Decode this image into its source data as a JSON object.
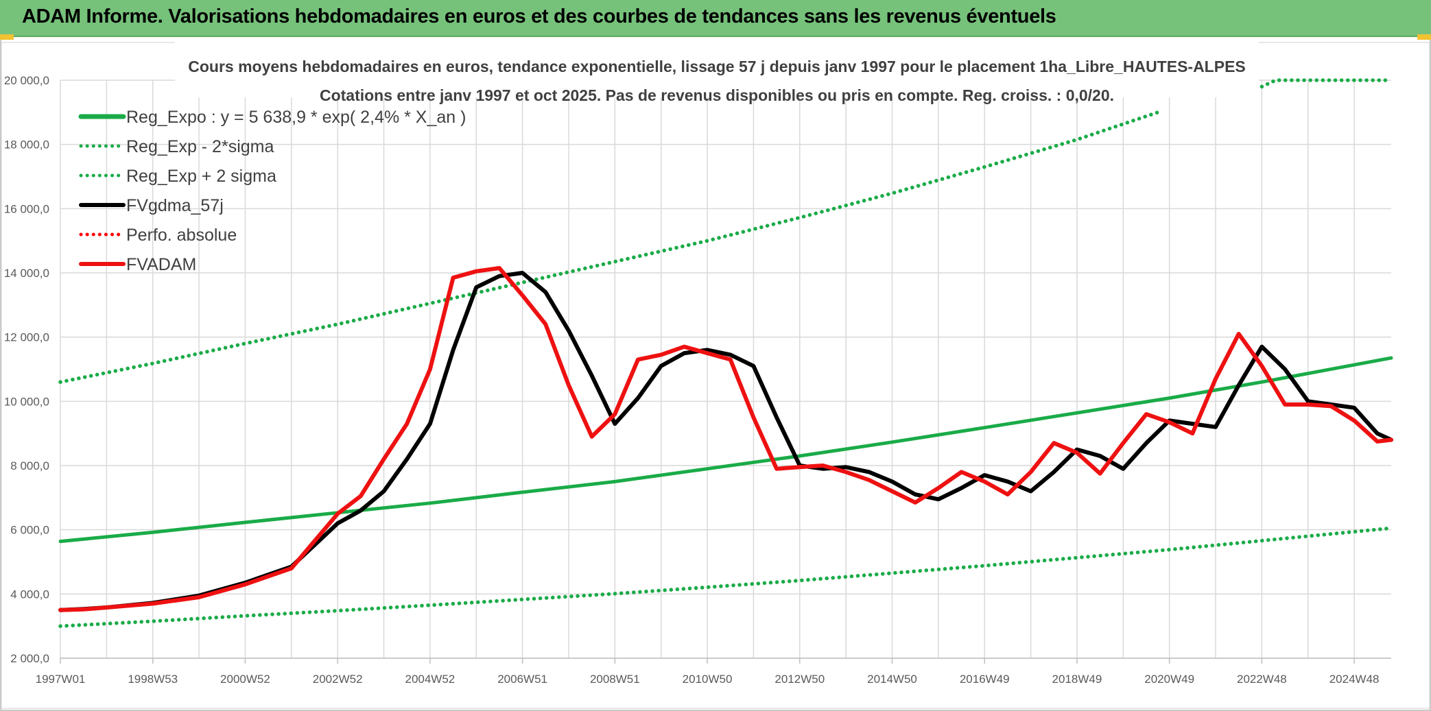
{
  "header": {
    "title": "ADAM Informe. Valorisations hebdomadaires en euros et des courbes de tendances sans les revenus éventuels"
  },
  "colors": {
    "header_bg": "#76c27b",
    "reg_expo": "#1aab48",
    "fvgdma": "#000000",
    "perfo": "#ff0000",
    "fvadam": "#ee1111",
    "grid": "#d9d9d9",
    "corner": "#f1c232"
  },
  "chart_data": {
    "type": "line",
    "title": "Cours moyens hebdomadaires en euros, tendance exponentielle, lissage 57 j depuis janv 1997 pour le placement 1ha_Libre_HAUTES-ALPES",
    "subtitle": "Cotations entre janv 1997 et oct 2025. Pas de revenus disponibles ou pris en compte. Reg. croiss. : 0,0/20.",
    "xlabel": "",
    "ylabel": "",
    "ylim": [
      2000,
      20000
    ],
    "xlim": [
      1997.0,
      2025.8
    ],
    "grid": true,
    "legend_position": "top-left",
    "y_ticks": [
      {
        "value": 2000,
        "label": "2 000,0"
      },
      {
        "value": 4000,
        "label": "4 000,0"
      },
      {
        "value": 6000,
        "label": "6 000,0"
      },
      {
        "value": 8000,
        "label": "8 000,0"
      },
      {
        "value": 10000,
        "label": "10 000,0"
      },
      {
        "value": 12000,
        "label": "12 000,0"
      },
      {
        "value": 14000,
        "label": "14 000,0"
      },
      {
        "value": 16000,
        "label": "16 000,0"
      },
      {
        "value": 18000,
        "label": "18 000,0"
      },
      {
        "value": 20000,
        "label": "20 000,0"
      }
    ],
    "x_ticks": [
      {
        "value": 1997.0,
        "label": "1997W01"
      },
      {
        "value": 1999.0,
        "label": "1998W53"
      },
      {
        "value": 2001.0,
        "label": "2000W52"
      },
      {
        "value": 2003.0,
        "label": "2002W52"
      },
      {
        "value": 2005.0,
        "label": "2004W52"
      },
      {
        "value": 2007.0,
        "label": "2006W51"
      },
      {
        "value": 2009.0,
        "label": "2008W51"
      },
      {
        "value": 2011.0,
        "label": "2010W50"
      },
      {
        "value": 2013.0,
        "label": "2012W50"
      },
      {
        "value": 2015.0,
        "label": "2014W50"
      },
      {
        "value": 2017.0,
        "label": "2016W49"
      },
      {
        "value": 2019.0,
        "label": "2018W49"
      },
      {
        "value": 2021.0,
        "label": "2020W49"
      },
      {
        "value": 2023.0,
        "label": "2022W48"
      },
      {
        "value": 2025.0,
        "label": "2024W48"
      }
    ],
    "series": [
      {
        "name": "Reg_Expo : y = 5 638,9 * exp( 2,4% *  X_an )",
        "style": "solid",
        "color": "#1aab48",
        "x": [
          1997.0,
          1999.0,
          2001.0,
          2003.0,
          2005.0,
          2007.0,
          2009.0,
          2011.0,
          2013.0,
          2015.0,
          2017.0,
          2019.0,
          2021.0,
          2023.0,
          2025.8
        ],
        "values": [
          5639,
          5920,
          6230,
          6530,
          6830,
          7170,
          7500,
          7900,
          8300,
          8730,
          9180,
          9640,
          10100,
          10600,
          11350
        ]
      },
      {
        "name": "Reg_Exp - 2*sigma",
        "style": "dotted",
        "color": "#1aab48",
        "x": [
          1997.0,
          1999.0,
          2001.0,
          2003.0,
          2005.0,
          2007.0,
          2009.0,
          2011.0,
          2013.0,
          2015.0,
          2017.0,
          2019.0,
          2021.0,
          2023.0,
          2025.8
        ],
        "values": [
          3000,
          3150,
          3320,
          3480,
          3650,
          3830,
          4010,
          4210,
          4420,
          4650,
          4880,
          5130,
          5380,
          5660,
          6050
        ]
      },
      {
        "name": "Reg_Exp + 2 sigma",
        "style": "dotted",
        "color": "#1aab48",
        "x": [
          1997.0,
          1999.0,
          2001.0,
          2003.0,
          2005.0,
          2007.0,
          2009.0,
          2011.0,
          2013.0,
          2015.0,
          2017.0,
          2019.0,
          2020.75
        ],
        "values": [
          10600,
          11180,
          11800,
          12400,
          13050,
          13700,
          14350,
          15000,
          15720,
          16480,
          17300,
          18150,
          19000
        ],
        "x2": [
          2023.0,
          2023.3,
          2025.8
        ],
        "values2": [
          19800,
          20000,
          20000
        ]
      },
      {
        "name": "FVgdma_57j",
        "style": "solid",
        "color": "#000000",
        "x": [
          1997.0,
          1997.5,
          1998.0,
          1999.0,
          2000.0,
          2001.0,
          2002.0,
          2003.0,
          2003.5,
          2004.0,
          2004.5,
          2005.0,
          2005.5,
          2006.0,
          2006.5,
          2007.0,
          2007.5,
          2008.0,
          2008.5,
          2009.0,
          2009.5,
          2010.0,
          2010.5,
          2011.0,
          2011.5,
          2012.0,
          2012.5,
          2013.0,
          2013.5,
          2014.0,
          2014.5,
          2015.0,
          2015.5,
          2016.0,
          2016.5,
          2017.0,
          2017.5,
          2018.0,
          2018.5,
          2019.0,
          2019.5,
          2020.0,
          2020.5,
          2021.0,
          2021.5,
          2022.0,
          2022.5,
          2023.0,
          2023.5,
          2024.0,
          2024.5,
          2025.0,
          2025.5,
          2025.8
        ],
        "values": [
          3500,
          3530,
          3580,
          3720,
          3950,
          4350,
          4850,
          6200,
          6600,
          7200,
          8200,
          9300,
          11600,
          13550,
          13900,
          14000,
          13400,
          12200,
          10800,
          9300,
          10100,
          11100,
          11500,
          11600,
          11450,
          11100,
          9500,
          8000,
          7900,
          7950,
          7800,
          7500,
          7100,
          6950,
          7300,
          7700,
          7500,
          7200,
          7800,
          8500,
          8300,
          7900,
          8700,
          9400,
          9300,
          9200,
          10500,
          11700,
          11000,
          10000,
          9900,
          9800,
          9000,
          8800
        ]
      },
      {
        "name": "Perfo. absolue",
        "style": "dotted",
        "color": "#ff0000",
        "x": [],
        "values": []
      },
      {
        "name": "FVADAM",
        "style": "solid",
        "color": "#ee1111",
        "x": [
          1997.0,
          1997.5,
          1998.0,
          1999.0,
          2000.0,
          2001.0,
          2002.0,
          2003.0,
          2003.5,
          2004.0,
          2004.5,
          2005.0,
          2005.5,
          2006.0,
          2006.5,
          2007.0,
          2007.5,
          2008.0,
          2008.5,
          2009.0,
          2009.5,
          2010.0,
          2010.5,
          2011.0,
          2011.5,
          2012.0,
          2012.5,
          2013.0,
          2013.5,
          2014.0,
          2014.5,
          2015.0,
          2015.5,
          2016.0,
          2016.5,
          2017.0,
          2017.5,
          2018.0,
          2018.5,
          2019.0,
          2019.5,
          2020.0,
          2020.5,
          2021.0,
          2021.5,
          2022.0,
          2022.5,
          2023.0,
          2023.5,
          2024.0,
          2024.5,
          2025.0,
          2025.5,
          2025.8
        ],
        "values": [
          3500,
          3520,
          3580,
          3700,
          3900,
          4300,
          4800,
          6500,
          7050,
          8200,
          9300,
          11000,
          13850,
          14050,
          14150,
          13300,
          12400,
          10500,
          8900,
          9600,
          11300,
          11450,
          11700,
          11500,
          11300,
          9500,
          7900,
          7950,
          8000,
          7800,
          7550,
          7200,
          6850,
          7300,
          7800,
          7500,
          7100,
          7800,
          8700,
          8400,
          7750,
          8700,
          9600,
          9350,
          9000,
          10700,
          12100,
          11100,
          9900,
          9900,
          9850,
          9400,
          8750,
          8800
        ]
      }
    ]
  }
}
